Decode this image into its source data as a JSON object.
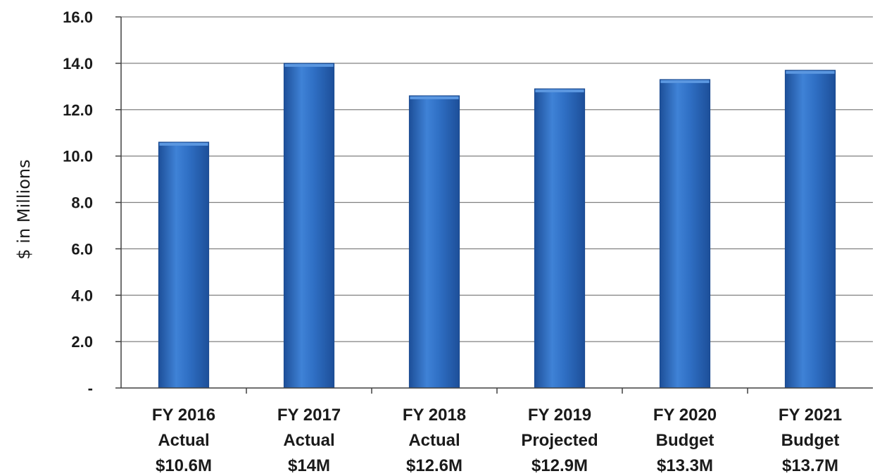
{
  "chart_data": {
    "type": "bar",
    "ylabel": "$ in Millions",
    "ylim": [
      0,
      16
    ],
    "y_ticks": [
      {
        "value": 0,
        "label": "-"
      },
      {
        "value": 2,
        "label": "2.0"
      },
      {
        "value": 4,
        "label": "4.0"
      },
      {
        "value": 6,
        "label": "6.0"
      },
      {
        "value": 8,
        "label": "8.0"
      },
      {
        "value": 10,
        "label": "10.0"
      },
      {
        "value": 12,
        "label": "12.0"
      },
      {
        "value": 14,
        "label": "14.0"
      },
      {
        "value": 16,
        "label": "16.0"
      }
    ],
    "categories": [
      [
        "FY 2016",
        "Actual",
        "$10.6M"
      ],
      [
        "FY 2017",
        "Actual",
        "$14M"
      ],
      [
        "FY 2018",
        "Actual",
        "$12.6M"
      ],
      [
        "FY 2019",
        "Projected",
        "$12.9M"
      ],
      [
        "FY 2020",
        "Budget",
        "$13.3M"
      ],
      [
        "FY 2021",
        "Budget",
        "$13.7M"
      ]
    ],
    "values": [
      10.6,
      14.0,
      12.6,
      12.9,
      13.3,
      13.7
    ],
    "grid": true,
    "legend": "none",
    "colors": {
      "bar": "#2f6fc4",
      "bar_light": "#5b97e0",
      "bar_dark": "#1d4f99",
      "grid": "#808080"
    }
  }
}
